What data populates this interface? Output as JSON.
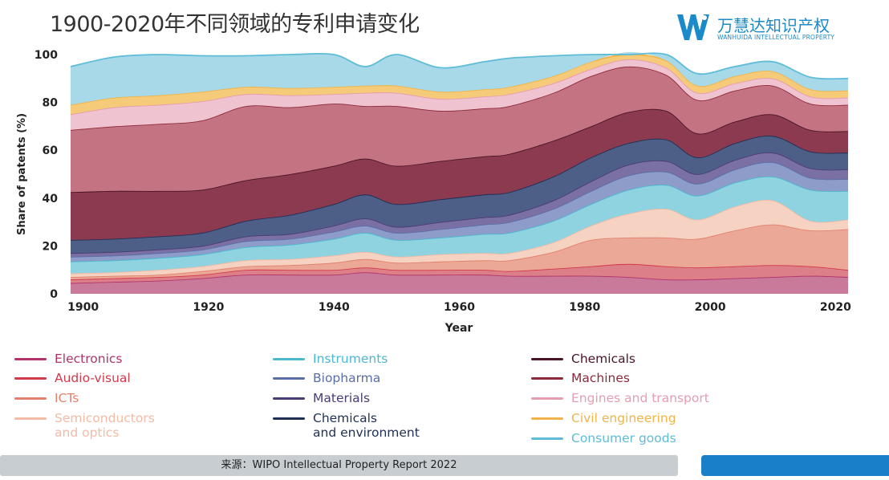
{
  "title": "1900-2020年不同领域的专利申请变化",
  "logo": {
    "name_cn": "万慧达知识产权",
    "name_en": "WANHUIDA INTELLECTUAL PROPERTY",
    "color": "#1a8ac8"
  },
  "footer": {
    "source": "来源：WIPO Intellectual Property Report 2022"
  },
  "chart_data": {
    "type": "area",
    "stacked": true,
    "xlabel": "Year",
    "ylabel": "Share of patents (%)",
    "xlim": [
      1898,
      2022
    ],
    "ylim": [
      0,
      100
    ],
    "xticks": [
      1900,
      1920,
      1940,
      1960,
      1980,
      2000,
      2020
    ],
    "yticks": [
      0,
      20,
      40,
      60,
      80,
      100
    ],
    "grid": false,
    "legend_position": "bottom",
    "x": [
      1898,
      1905,
      1912,
      1919,
      1926,
      1933,
      1940,
      1945,
      1950,
      1957,
      1964,
      1968,
      1975,
      1981,
      1987,
      1993,
      1998,
      2004,
      2010,
      2016,
      2022
    ],
    "series": [
      {
        "name": "Electronics",
        "color": "#b0336a",
        "fill": "#c9799a",
        "values": [
          4.5,
          5,
          5.5,
          6.5,
          8,
          8,
          8,
          9,
          8,
          8,
          8,
          7.5,
          7.5,
          7.5,
          7,
          6,
          6,
          6.5,
          7,
          7.5,
          7
        ]
      },
      {
        "name": "Audio-visual",
        "color": "#d03a4a",
        "fill": "#dc7f89",
        "values": [
          1.5,
          1.5,
          1.5,
          1.5,
          2,
          2,
          2,
          2,
          2,
          2,
          2,
          2,
          3,
          4,
          5.5,
          5.5,
          5,
          5,
          5,
          4,
          3
        ]
      },
      {
        "name": "ICTs",
        "color": "#e0826e",
        "fill": "#eca896",
        "values": [
          1,
          1,
          1,
          1.5,
          1.5,
          2,
          3,
          3.5,
          3,
          3.5,
          4,
          4.5,
          7,
          11,
          11,
          12,
          12,
          15,
          17,
          15,
          17
        ]
      },
      {
        "name": "Semiconductors and optics",
        "color": "#f2bba5",
        "fill": "#f6d2c2",
        "values": [
          1.5,
          1.5,
          2,
          2,
          2.5,
          2.5,
          3,
          3,
          2.5,
          3,
          3,
          3,
          4,
          6,
          10,
          12,
          8,
          10,
          10,
          4,
          4
        ]
      },
      {
        "name": "Instruments",
        "color": "#4cb8cf",
        "fill": "#8fd3e0",
        "values": [
          5,
          5,
          5,
          5,
          5.5,
          6,
          7,
          8,
          7,
          7,
          8,
          8.5,
          9,
          9,
          10,
          10,
          10,
          10,
          10,
          13,
          12
        ]
      },
      {
        "name": "Biopharma",
        "color": "#5a6ea8",
        "fill": "#8d9cc9",
        "values": [
          2,
          2,
          2,
          2,
          2.5,
          2.5,
          3,
          3,
          3,
          3.5,
          4,
          4.5,
          5,
          5.5,
          6,
          5.5,
          5,
          5.5,
          6,
          5,
          5
        ]
      },
      {
        "name": "Materials",
        "color": "#4a3c72",
        "fill": "#7b70a3",
        "values": [
          1.5,
          1.5,
          1.5,
          1.5,
          2,
          2,
          2.5,
          3,
          2.5,
          3,
          3,
          3,
          3.5,
          4,
          4.5,
          4.5,
          4,
          4,
          4,
          4,
          4
        ]
      },
      {
        "name": "Chemicals and environment",
        "color": "#1f2f55",
        "fill": "#4d5f86",
        "values": [
          5.5,
          5.5,
          5.5,
          5.5,
          6.5,
          8,
          9,
          10,
          9.5,
          9.5,
          9.5,
          9.5,
          10,
          10,
          9,
          9,
          7,
          7,
          7,
          7,
          7
        ]
      },
      {
        "name": "Chemicals",
        "color": "#4a1424",
        "fill": "#8c3a50",
        "values": [
          20,
          20,
          19,
          18,
          17,
          17,
          16,
          15,
          16,
          16,
          16,
          16,
          15,
          13,
          13,
          12,
          10,
          9,
          9,
          9,
          9
        ]
      },
      {
        "name": "Machines",
        "color": "#8c2a3c",
        "fill": "#c47382",
        "values": [
          26,
          27,
          28,
          29,
          31,
          28,
          26,
          22,
          25,
          21,
          20,
          20,
          20,
          21,
          19,
          15,
          14,
          13,
          12,
          11,
          11
        ]
      },
      {
        "name": "Engines and transport",
        "color": "#e79db0",
        "fill": "#efc3cf",
        "values": [
          6.5,
          8,
          8,
          8,
          5,
          5,
          4,
          5.5,
          5.5,
          5,
          5,
          5,
          4,
          3,
          3,
          3,
          3,
          3,
          3,
          3,
          3
        ]
      },
      {
        "name": "Civil engineering",
        "color": "#f0b44a",
        "fill": "#f5ca78",
        "values": [
          4,
          4,
          4,
          4,
          3,
          3,
          3,
          3,
          3,
          3,
          3,
          3,
          3,
          3,
          3,
          3,
          3,
          3,
          3,
          3,
          3
        ]
      },
      {
        "name": "Consumer goods",
        "color": "#5fbcd6",
        "fill": "#a8d9e8",
        "values": [
          16,
          17,
          17,
          15,
          13,
          14,
          13.5,
          8,
          13,
          10,
          11.5,
          12,
          8.5,
          3,
          3,
          3,
          5,
          4,
          4,
          5,
          5
        ]
      }
    ],
    "legend_columns": [
      [
        "Electronics",
        "Audio-visual",
        "ICTs",
        "Semiconductors\nand optics"
      ],
      [
        "Instruments",
        "Biopharma",
        "Materials",
        "Chemicals\nand environment"
      ],
      [
        "Chemicals",
        "Machines",
        "Engines and transport",
        "Civil engineering",
        "Consumer goods"
      ]
    ]
  }
}
